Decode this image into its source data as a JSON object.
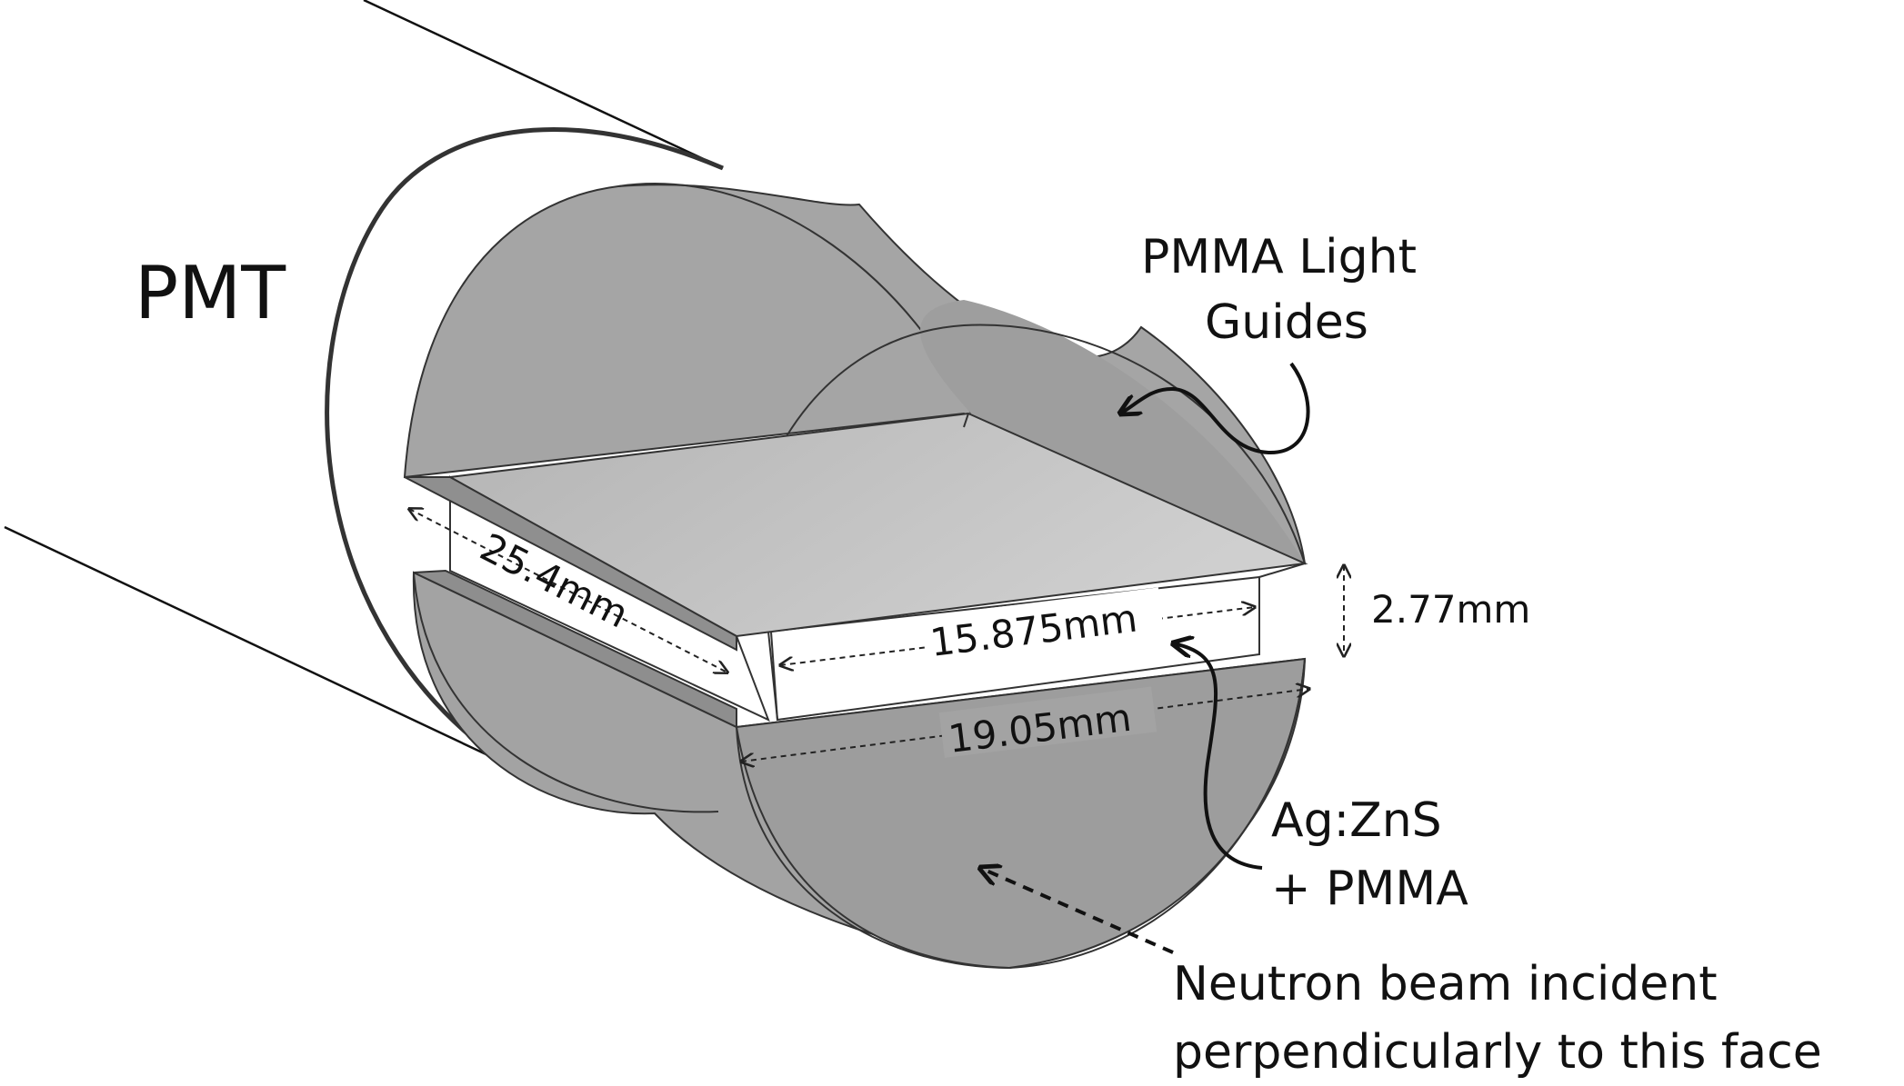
{
  "labels": {
    "pmt": "PMT",
    "light_guides": [
      "PMMA Light",
      "Guides"
    ],
    "scintillator": [
      "Ag:ZnS",
      "+ PMMA"
    ],
    "beam": [
      "Neutron beam incident",
      "perpendicularly to this face"
    ]
  },
  "dimensions": {
    "length": "25.4mm",
    "scint_width": "15.875mm",
    "guide_width": "19.05mm",
    "thickness": "2.77mm"
  },
  "colors": {
    "guide_fill": "#a8a8a8",
    "guide_end_fill": "#9c9c9c",
    "scint_top": "#c8c8c8",
    "scint_side": "#ffffff",
    "line": "#222222"
  }
}
